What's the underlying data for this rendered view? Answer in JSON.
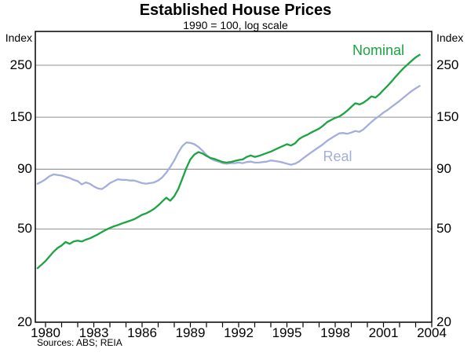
{
  "title": "Established House Prices",
  "subtitle": "1990 = 100, log scale",
  "axis_unit_label": "Index",
  "source_note": "Sources: ABS; REIA",
  "colors": {
    "nominal": "#1ba441",
    "real": "#a3aedd",
    "grid": "#8f8f8f",
    "axis": "#000000",
    "background": "#ffffff",
    "text": "#000000"
  },
  "chart_data": {
    "type": "line",
    "title": "Established House Prices",
    "subtitle": "1990 = 100, log scale",
    "ylabel": "Index",
    "y_scale": "log",
    "ylim": [
      20,
      350
    ],
    "xlim": [
      1979.37,
      2004
    ],
    "grid": "horizontal",
    "y_ticks": [
      250,
      150,
      90,
      50,
      20
    ],
    "x_ticks": [
      1980,
      1981,
      1982,
      1983,
      1984,
      1985,
      1986,
      1987,
      1988,
      1989,
      1990,
      1991,
      1992,
      1993,
      1994,
      1995,
      1996,
      1997,
      1998,
      1999,
      2000,
      2001,
      2002,
      2003,
      2004
    ],
    "x_labels": [
      1980,
      1983,
      1986,
      1989,
      1992,
      1995,
      1998,
      2001,
      2004
    ],
    "legend_position": "inline-annotations",
    "x": [
      1979.5,
      1979.75,
      1980,
      1980.25,
      1980.5,
      1980.75,
      1981,
      1981.25,
      1981.5,
      1981.75,
      1982,
      1982.25,
      1982.5,
      1982.75,
      1983,
      1983.25,
      1983.5,
      1983.75,
      1984,
      1984.25,
      1984.5,
      1984.75,
      1985,
      1985.25,
      1985.5,
      1985.75,
      1986,
      1986.25,
      1986.5,
      1986.75,
      1987,
      1987.25,
      1987.5,
      1987.75,
      1988,
      1988.25,
      1988.5,
      1988.75,
      1989,
      1989.25,
      1989.5,
      1989.75,
      1990,
      1990.25,
      1990.5,
      1990.75,
      1991,
      1991.25,
      1991.5,
      1991.75,
      1992,
      1992.25,
      1992.5,
      1992.75,
      1993,
      1993.25,
      1993.5,
      1993.75,
      1994,
      1994.25,
      1994.5,
      1994.75,
      1995,
      1995.25,
      1995.5,
      1995.75,
      1996,
      1996.25,
      1996.5,
      1996.75,
      1997,
      1997.25,
      1997.5,
      1997.75,
      1998,
      1998.25,
      1998.5,
      1998.75,
      1999,
      1999.25,
      1999.5,
      1999.75,
      2000,
      2000.25,
      2000.5,
      2000.75,
      2001,
      2001.25,
      2001.5,
      2001.75,
      2002,
      2002.25,
      2002.5,
      2002.75,
      2003,
      2003.25
    ],
    "series": [
      {
        "name": "Nominal",
        "color": "#1ba441",
        "values": [
          34,
          35.2,
          36.5,
          38.2,
          40,
          41.5,
          42.5,
          44,
          43.2,
          44.2,
          44.6,
          44.2,
          45,
          45.6,
          46.5,
          47.4,
          48.5,
          49.6,
          50.5,
          51.3,
          52,
          52.8,
          53.5,
          54.2,
          55,
          56.2,
          57.5,
          58.3,
          59.5,
          61,
          63,
          65.5,
          68,
          66,
          69,
          74,
          82,
          91,
          99,
          104,
          106.5,
          105,
          102.5,
          100.5,
          99.5,
          98,
          96.5,
          96,
          96.5,
          97.5,
          98.5,
          99,
          101.5,
          103,
          101.5,
          102.5,
          104,
          105.5,
          107,
          109,
          111,
          113,
          115,
          113.5,
          116,
          121,
          124,
          126,
          129,
          131.5,
          134,
          138,
          143,
          146,
          149,
          151,
          155,
          160,
          166,
          172,
          170,
          173,
          178,
          184,
          182,
          188,
          196,
          204,
          213,
          223,
          233,
          243,
          252,
          261,
          270,
          277
        ]
      },
      {
        "name": "Real",
        "color": "#a3aedd",
        "values": [
          78,
          79.5,
          81.5,
          84,
          85.5,
          85,
          84.5,
          83.5,
          82.5,
          81,
          80,
          77.5,
          79,
          78,
          76,
          74.5,
          74,
          76,
          78.5,
          80,
          81.5,
          81,
          81,
          80.5,
          80.5,
          79.5,
          78.5,
          78,
          78.5,
          79,
          80.5,
          83,
          87,
          92,
          98,
          106,
          113,
          117,
          116.5,
          115,
          112,
          108,
          103.5,
          100,
          98,
          97,
          95.5,
          95,
          95.5,
          95.5,
          96,
          95.5,
          96.5,
          97,
          96,
          96,
          96.5,
          97,
          98,
          97.5,
          97,
          96,
          95,
          94,
          95,
          97,
          100,
          103,
          106,
          109,
          112,
          115,
          119,
          122,
          125,
          128,
          128.5,
          127.5,
          129,
          131,
          130,
          133,
          138,
          143,
          148,
          152,
          157,
          161,
          166,
          171,
          176,
          182,
          188,
          194,
          199,
          204
        ]
      }
    ]
  }
}
